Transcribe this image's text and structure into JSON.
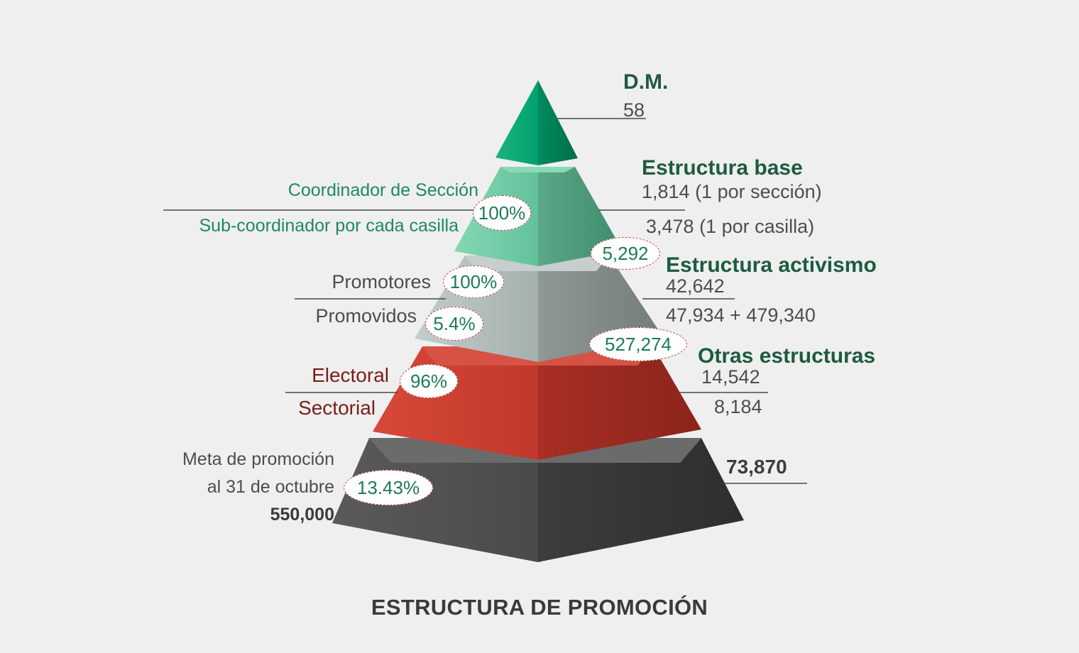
{
  "title": "ESTRUCTURA DE PROMOCIÓN",
  "tiers": {
    "dm": {
      "heading": "D.M.",
      "value": "58"
    },
    "base": {
      "heading": "Estructura base",
      "value1": "1,814 (1 por sección)",
      "value2": "3,478 (1 por casilla)",
      "left_label1": "Coordinador de Sección",
      "left_label2": "Sub-coordinador  por cada casilla",
      "badge_pct": "100%",
      "badge_total": "5,292"
    },
    "activismo": {
      "heading": "Estructura activismo",
      "value1": "42,642",
      "value2": "47,934 + 479,340",
      "left_label1": "Promotores",
      "left_label2": "Promovidos",
      "badge_pct1": "100%",
      "badge_pct2": "5.4%",
      "badge_total": "527,274"
    },
    "otras": {
      "heading": "Otras estructuras",
      "value1": "14,542",
      "value2": "8,184",
      "left_label1": "Electoral",
      "left_label2": "Sectorial",
      "badge_pct": "96%"
    },
    "meta": {
      "line1": "Meta de promoción",
      "line2": "al 31 de octubre",
      "line3": "550,000",
      "badge_pct": "13.43%",
      "right_value": "73,870"
    }
  },
  "colors": {
    "green_top": "#00a16e",
    "green_light": "#6ec9a4",
    "gray_light": "#a9b5b3",
    "red": "#c0382b",
    "dark": "#4a4a4a",
    "heading_green": "#1d5b3f"
  }
}
